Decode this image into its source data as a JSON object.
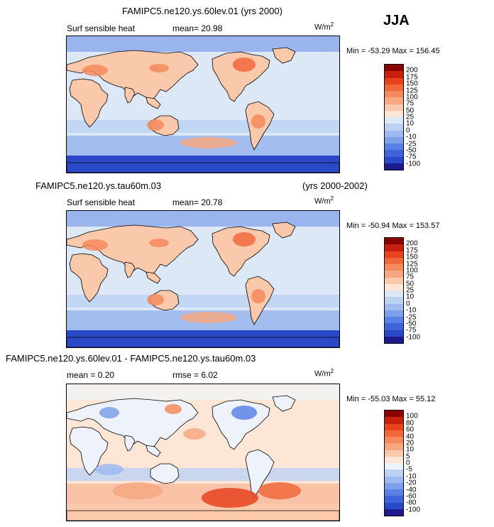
{
  "season": "JJA",
  "panels": [
    {
      "title": "FAMIPC5.ne120.ys.60lev.01 (yrs 2000)",
      "case_label": "",
      "years_label": "",
      "variable": "Surf sensible heat",
      "stat1": "mean=  20.98",
      "stat2": "",
      "units_base": "W/m",
      "units_exp": "2",
      "minmax": "Min = -53.29  Max = 156.45",
      "levels": [
        "200",
        "175",
        "150",
        "125",
        "100",
        "75",
        "50",
        "25",
        "10",
        "0",
        "-10",
        "-25",
        "-50",
        "-75",
        "-100"
      ],
      "colors": [
        "#8b0000",
        "#c8200e",
        "#e8431f",
        "#f0683c",
        "#f58a5c",
        "#f7a883",
        "#fac9ab",
        "#fde6d6",
        "#dde8f7",
        "#bcd2f3",
        "#9fbaf0",
        "#7ea0ea",
        "#5a81e4",
        "#3f63d8",
        "#2a49c8",
        "#1c1a8c"
      ]
    },
    {
      "title": "",
      "case_label": "FAMIPC5.ne120.ys.tau60m.03",
      "years_label": "(yrs 2000-2002)",
      "variable": "Surf sensible heat",
      "stat1": "mean=  20.78",
      "stat2": "",
      "units_base": "W/m",
      "units_exp": "2",
      "minmax": "Min = -50.94  Max = 153.57",
      "levels": [
        "200",
        "175",
        "150",
        "125",
        "100",
        "75",
        "50",
        "25",
        "10",
        "0",
        "-10",
        "-25",
        "-50",
        "-75",
        "-100"
      ],
      "colors": [
        "#8b0000",
        "#c8200e",
        "#e8431f",
        "#f0683c",
        "#f58a5c",
        "#f7a883",
        "#fac9ab",
        "#fde6d6",
        "#dde8f7",
        "#bcd2f3",
        "#9fbaf0",
        "#7ea0ea",
        "#5a81e4",
        "#3f63d8",
        "#2a49c8",
        "#1c1a8c"
      ]
    },
    {
      "title": "FAMIPC5.ne120.ys.60lev.01 - FAMIPC5.ne120.ys.tau60m.03",
      "case_label": "",
      "years_label": "",
      "variable": "",
      "stat1": "mean =   0.20",
      "stat2": "rmse =   6.02",
      "units_base": "W/m",
      "units_exp": "2",
      "minmax": "Min = -55.03  Max =  55.12",
      "levels": [
        "100",
        "80",
        "60",
        "40",
        "20",
        "10",
        "5",
        "0",
        "-5",
        "-10",
        "-20",
        "-40",
        "-60",
        "-80",
        "-100"
      ],
      "colors": [
        "#8b0000",
        "#c8200e",
        "#e8431f",
        "#f0683c",
        "#f58a5c",
        "#f7a883",
        "#fac9ab",
        "#fde6d6",
        "#eef3fb",
        "#bcd2f3",
        "#9fbaf0",
        "#7ea0ea",
        "#5a81e4",
        "#3f63d8",
        "#2a49c8",
        "#1c1a8c"
      ]
    }
  ]
}
